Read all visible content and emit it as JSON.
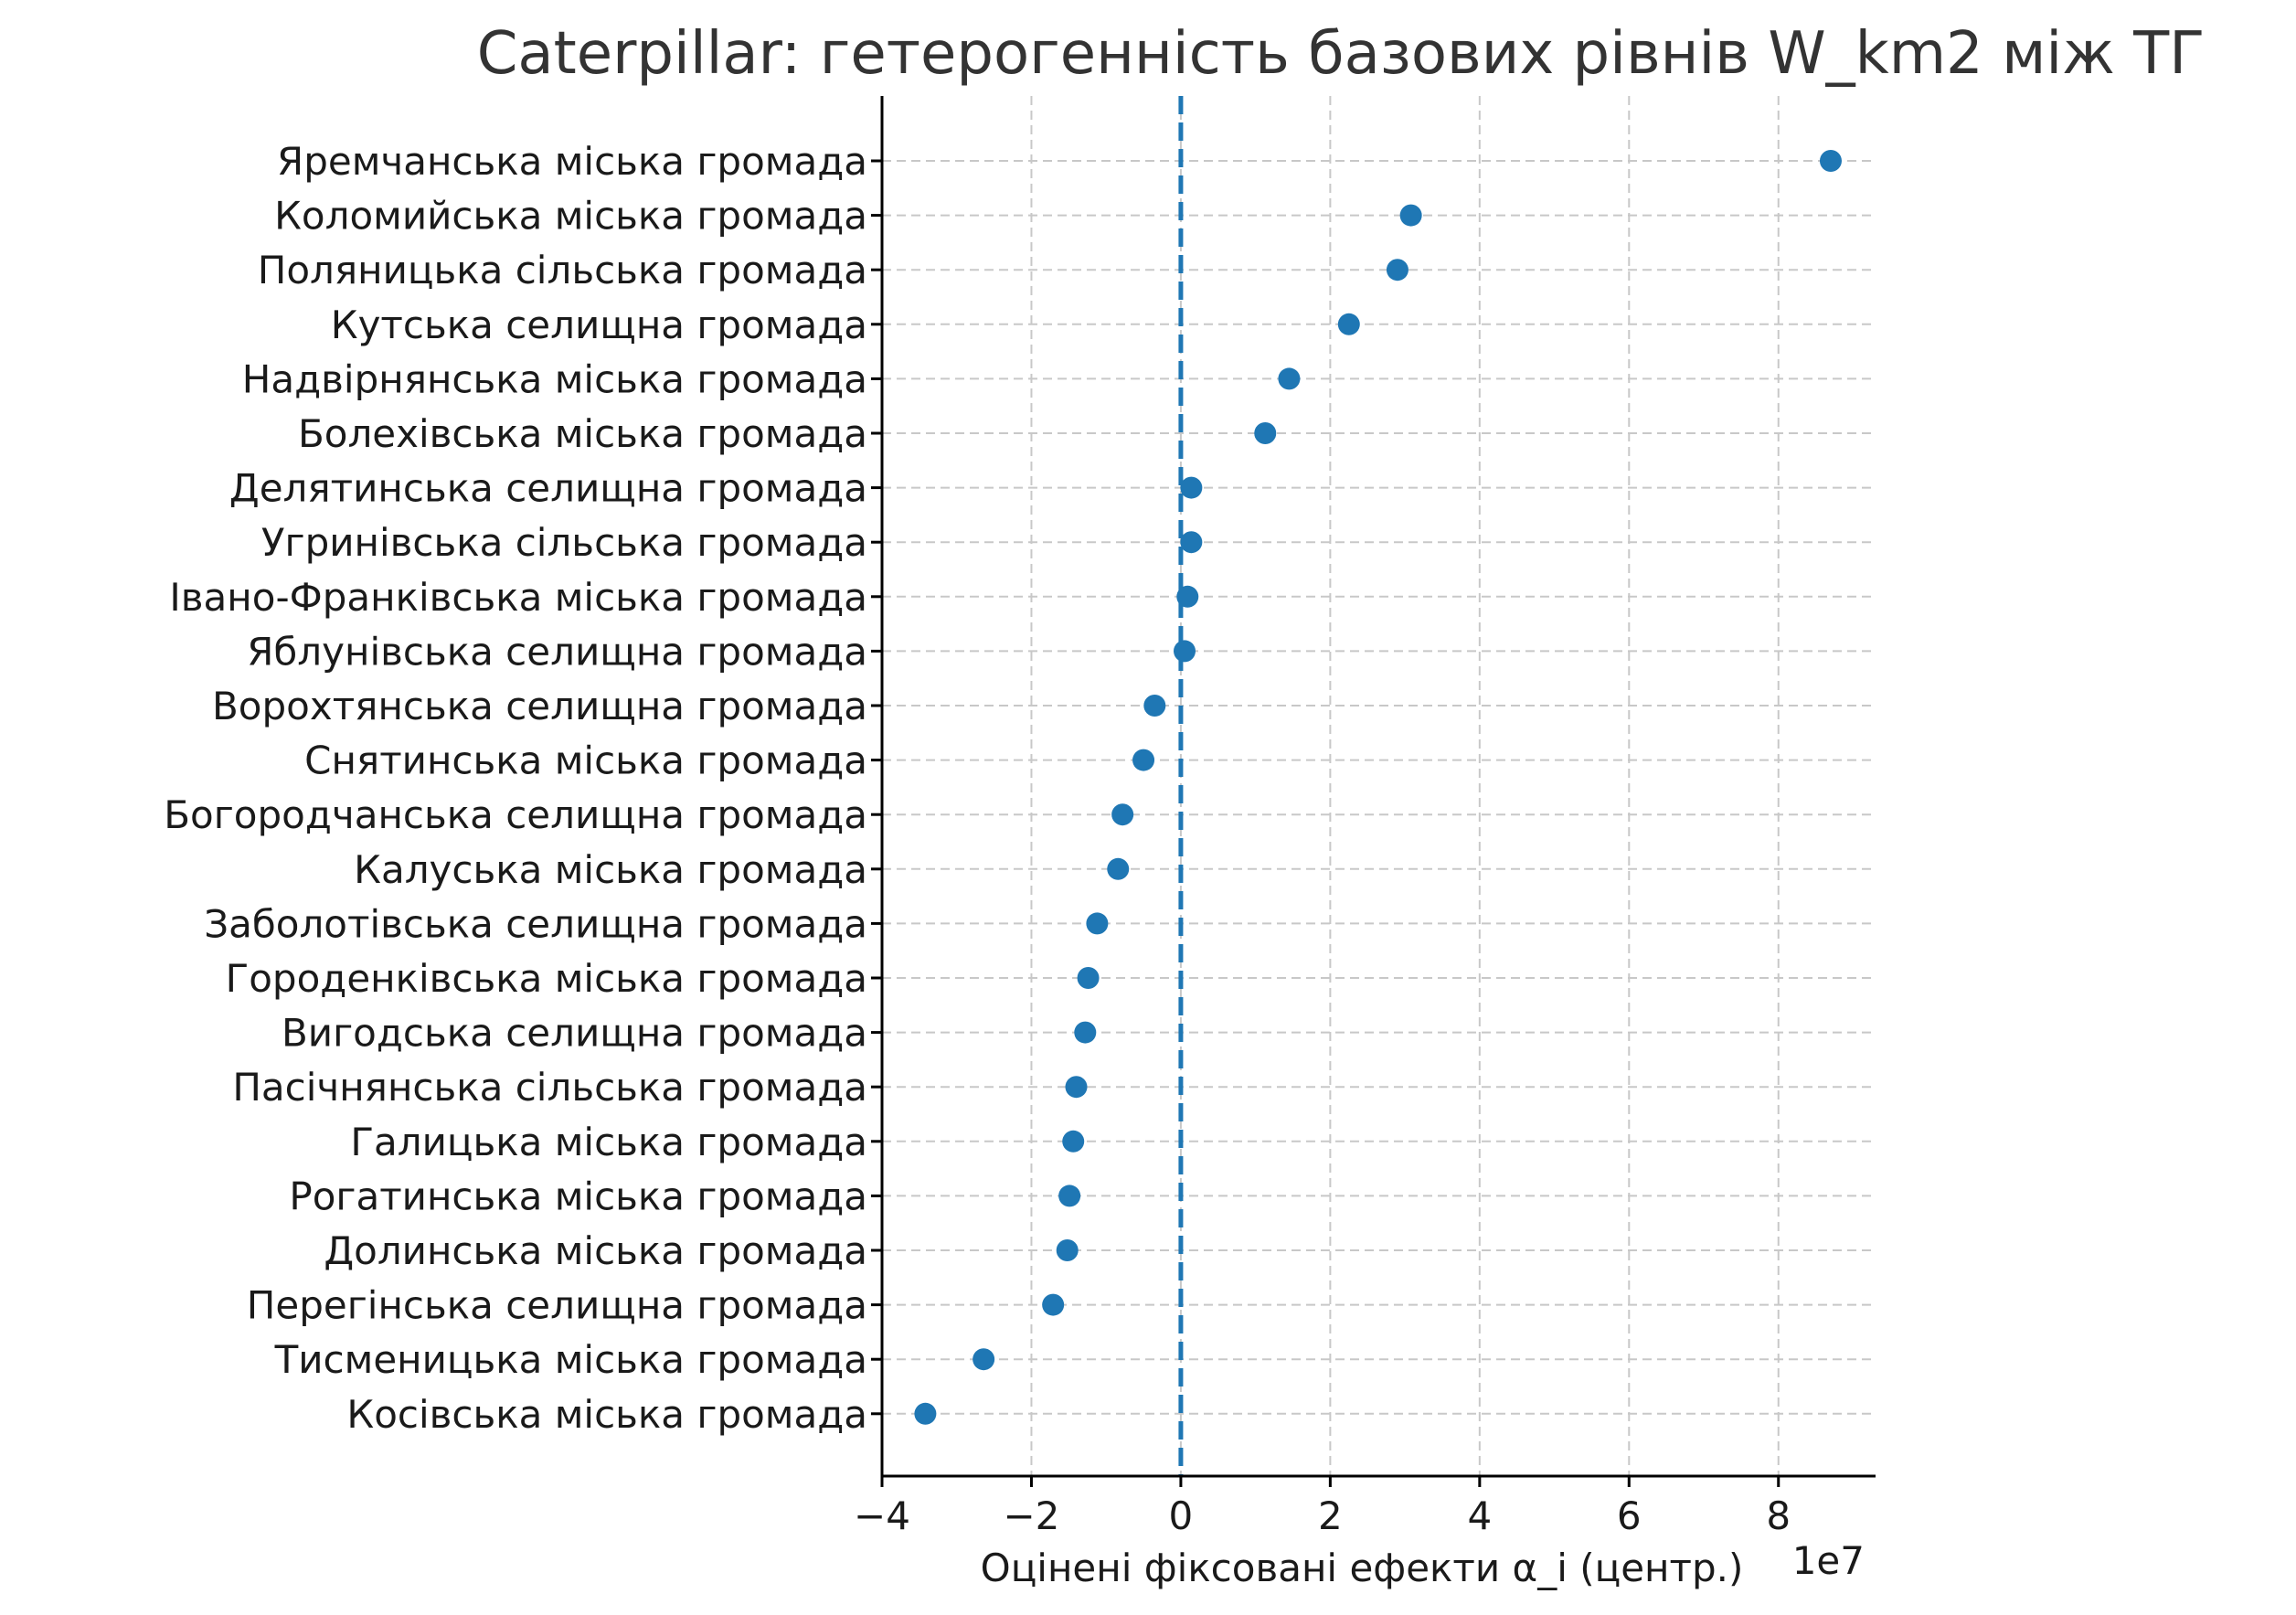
{
  "chart_data": {
    "type": "scatter",
    "title": "Caterpillar: гетерогенність базових рівнів W_km2 між ТГ",
    "xlabel": "Оцінені фіксовані ефекти α_i (центр.)",
    "x_offset_label": "1e7",
    "xlim": [
      -4,
      9.3
    ],
    "xticks": [
      -4,
      -2,
      0,
      2,
      4,
      6,
      8
    ],
    "xtick_labels": [
      "−4",
      "−2",
      "0",
      "2",
      "4",
      "6",
      "8"
    ],
    "reference_x": 0,
    "grid": true,
    "point_color": "#1f77b4",
    "categories": [
      "Яремчанська міська громада",
      "Коломийська міська громада",
      "Поляницька сільська громада",
      "Кутська селищна громада",
      "Надвірнянська міська громада",
      "Болехівська міська громада",
      "Делятинська селищна громада",
      "Угринівська сільська громада",
      "Івано-Франківська міська громада",
      "Яблунівська селищна громада",
      "Ворохтянська селищна громада",
      "Снятинська міська громада",
      "Богородчанська селищна громада",
      "Калуська міська громада",
      "Заболотівська селищна громада",
      "Городенківська міська громада",
      "Вигодська селищна громада",
      "Пасічнянська сільська громада",
      "Галицька міська громада",
      "Рогатинська міська громада",
      "Долинська міська громада",
      "Перегінська селищна громада",
      "Тисменицька міська громада",
      "Косівська міська громада"
    ],
    "values": [
      8.7,
      3.08,
      2.9,
      2.25,
      1.45,
      1.13,
      0.14,
      0.14,
      0.09,
      0.05,
      -0.35,
      -0.5,
      -0.78,
      -0.84,
      -1.12,
      -1.24,
      -1.28,
      -1.4,
      -1.44,
      -1.49,
      -1.52,
      -1.71,
      -2.64,
      -3.42
    ]
  }
}
